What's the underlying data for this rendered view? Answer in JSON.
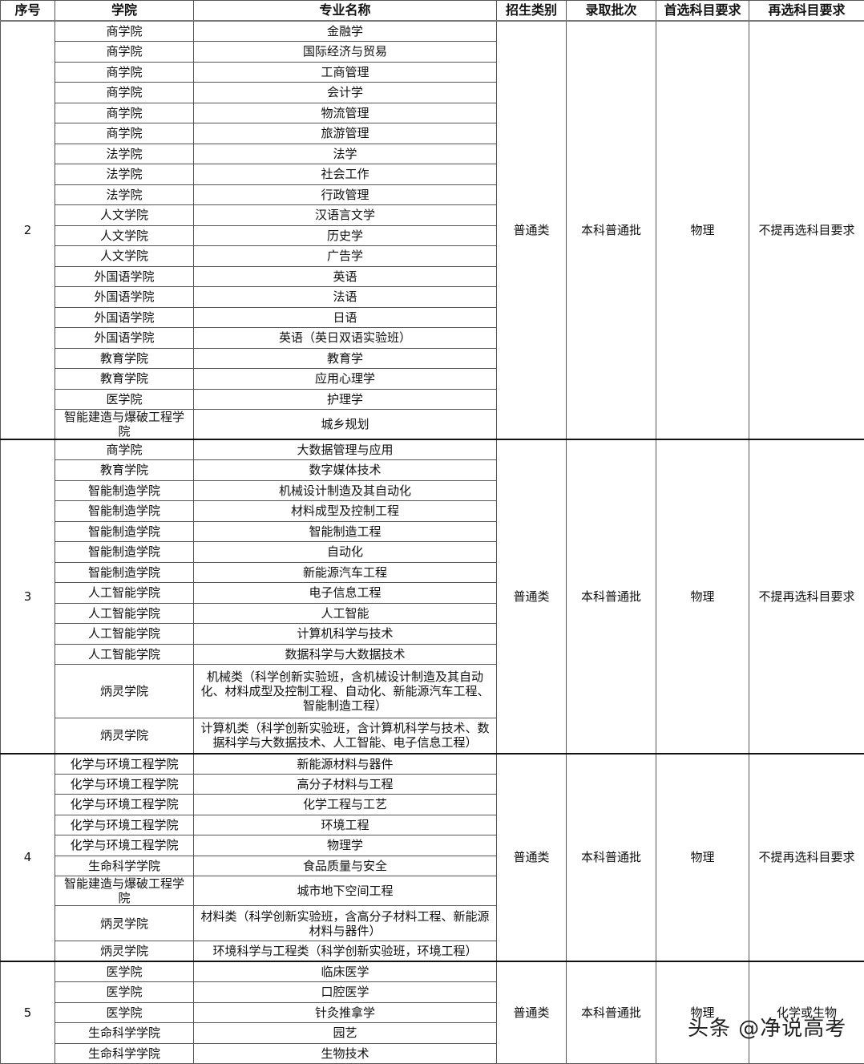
{
  "headers": [
    "序号",
    "学院",
    "专业名称",
    "招生类别",
    "录取批次",
    "首选科目要求",
    "再选科目要求"
  ],
  "groups": [
    {
      "no": "2",
      "category": "普通类",
      "batch": "本科普通批",
      "first": "物理",
      "second": "不提再选科目要求",
      "rows": [
        [
          "商学院",
          "金融学"
        ],
        [
          "商学院",
          "国际经济与贸易"
        ],
        [
          "商学院",
          "工商管理"
        ],
        [
          "商学院",
          "会计学"
        ],
        [
          "商学院",
          "物流管理"
        ],
        [
          "商学院",
          "旅游管理"
        ],
        [
          "法学院",
          "法学"
        ],
        [
          "法学院",
          "社会工作"
        ],
        [
          "法学院",
          "行政管理"
        ],
        [
          "人文学院",
          "汉语言文学"
        ],
        [
          "人文学院",
          "历史学"
        ],
        [
          "人文学院",
          "广告学"
        ],
        [
          "外国语学院",
          "英语"
        ],
        [
          "外国语学院",
          "法语"
        ],
        [
          "外国语学院",
          "日语"
        ],
        [
          "外国语学院",
          "英语（英日双语实验班）"
        ],
        [
          "教育学院",
          "教育学"
        ],
        [
          "教育学院",
          "应用心理学"
        ],
        [
          "医学院",
          "护理学"
        ],
        [
          "智能建造与爆破工程学院",
          "城乡规划"
        ]
      ]
    },
    {
      "no": "3",
      "category": "普通类",
      "batch": "本科普通批",
      "first": "物理",
      "second": "不提再选科目要求",
      "rows": [
        [
          "商学院",
          "大数据管理与应用"
        ],
        [
          "教育学院",
          "数字媒体技术"
        ],
        [
          "智能制造学院",
          "机械设计制造及其自动化"
        ],
        [
          "智能制造学院",
          "材料成型及控制工程"
        ],
        [
          "智能制造学院",
          "智能制造工程"
        ],
        [
          "智能制造学院",
          "自动化"
        ],
        [
          "智能制造学院",
          "新能源汽车工程"
        ],
        [
          "人工智能学院",
          "电子信息工程"
        ],
        [
          "人工智能学院",
          "人工智能"
        ],
        [
          "人工智能学院",
          "计算机科学与技术"
        ],
        [
          "人工智能学院",
          "数据科学与大数据技术"
        ],
        [
          "炳灵学院",
          "机械类（科学创新实验班，含机械设计制造及其自动化、材料成型及控制工程、自动化、新能源汽车工程、智能制造工程）"
        ],
        [
          "炳灵学院",
          "计算机类（科学创新实验班，含计算机科学与技术、数据科学与大数据技术、人工智能、电子信息工程）"
        ]
      ]
    },
    {
      "no": "4",
      "category": "普通类",
      "batch": "本科普通批",
      "first": "物理",
      "second": "不提再选科目要求",
      "rows": [
        [
          "化学与环境工程学院",
          "新能源材料与器件"
        ],
        [
          "化学与环境工程学院",
          "高分子材料与工程"
        ],
        [
          "化学与环境工程学院",
          "化学工程与工艺"
        ],
        [
          "化学与环境工程学院",
          "环境工程"
        ],
        [
          "化学与环境工程学院",
          "物理学"
        ],
        [
          "生命科学学院",
          "食品质量与安全"
        ],
        [
          "智能建造与爆破工程学院",
          "城市地下空间工程"
        ],
        [
          "炳灵学院",
          "材料类（科学创新实验班，含高分子材料工程、新能源材料与器件）"
        ],
        [
          "炳灵学院",
          "环境科学与工程类（科学创新实验班，环境工程）"
        ]
      ]
    },
    {
      "no": "5",
      "category": "普通类",
      "batch": "本科普通批",
      "first": "物理",
      "second": "化学或生物",
      "rows": [
        [
          "医学院",
          "临床医学"
        ],
        [
          "医学院",
          "口腔医学"
        ],
        [
          "医学院",
          "针灸推拿学"
        ],
        [
          "生命科学学院",
          "园艺"
        ],
        [
          "生命科学学院",
          "生物技术"
        ]
      ]
    }
  ],
  "watermark": "头条 @净说高考"
}
